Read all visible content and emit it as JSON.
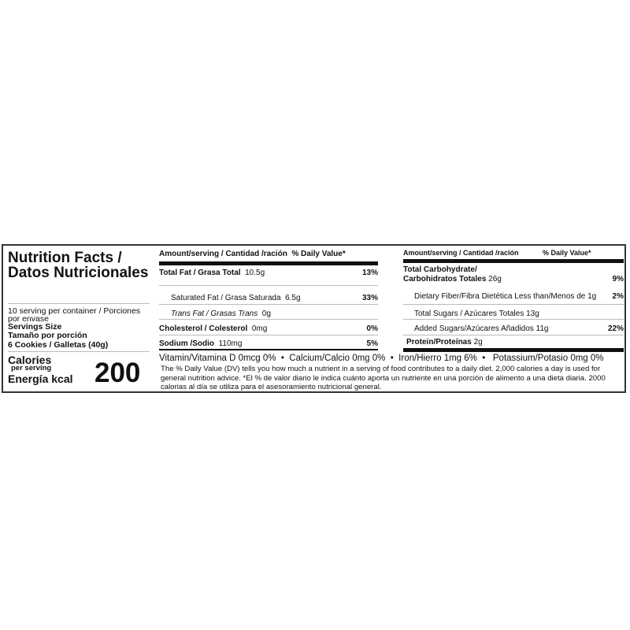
{
  "left": {
    "title": "Nutrition Facts / Datos Nutricionales",
    "servings_per_container": "10 serving per container / Porciones por envase",
    "serving_size_label_en": "Servings Size",
    "serving_size_label_es": "Tamaño por porción",
    "serving_size_value": "6 Cookies / Galletas (40g)",
    "calories_label": "Calories",
    "per_serving": "per serving",
    "energy_label": "Energía kcal",
    "calories_value": "200"
  },
  "middle": {
    "header_amount": "Amount/serving / Cantidad /ración",
    "header_dv": "% Daily Value*",
    "rows": [
      {
        "name": "Total Fat / Grasa Total",
        "amount": "10.5g",
        "dv": "13%"
      },
      {
        "name": "Saturated Fat / Grasa Saturada",
        "amount": "6.5g",
        "dv": "33%"
      },
      {
        "name": "Trans Fat / Grasas Trans",
        "amount": "0g",
        "dv": ""
      },
      {
        "name": "Cholesterol / Colesterol",
        "amount": "0mg",
        "dv": "0%"
      },
      {
        "name": "Sodium /Sodio",
        "amount": "110mg",
        "dv": "5%"
      }
    ]
  },
  "right": {
    "header_amount": "Amount/serving / Cantidad /ración",
    "header_dv": "% Daily Value*",
    "carb_line1": "Total Carbohydrate/",
    "carb_line2": "Carbohidratos Totales",
    "carb_amount": "26g",
    "carb_dv": "9%",
    "fiber": "Dietary Fiber/Fibra Dietética Less than/Menos de 1g",
    "fiber_dv": "2%",
    "sugars": "Total Sugars / Azúcares Totales 13g",
    "added": "Added Sugars/Azúcares Añadidos  11g",
    "added_dv": "22%",
    "protein_label": "Protein/Proteínas",
    "protein_amount": "2g"
  },
  "vitamins": "Vitamin/Vitamina D 0mcg 0%  •  Calcium/Calcio 0mg 0%  •  Iron/Hierro 1mg 6%  •   Potassium/Potasio 0mg 0%",
  "footnote": "The % Daily Value (DV) tells you how much a nutrient in a serving of food contributes to a daily diet. 2,000 calories a day is used for general nutrition advice. *El % de valor diario le indica cuánto aporta un nutriente en una porción de alimento a una dieta diaria. 2000 calorias al día se utiliza para el asesoramiento nutricional general."
}
